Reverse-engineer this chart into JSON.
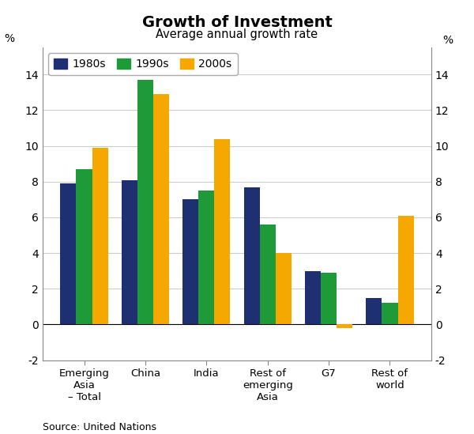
{
  "title": "Growth of Investment",
  "subtitle": "Average annual growth rate",
  "source": "Source: United Nations",
  "categories": [
    "Emerging\nAsia\n– Total",
    "China",
    "India",
    "Rest of\nemerging\nAsia",
    "G7",
    "Rest of\nworld"
  ],
  "series": {
    "1980s": [
      7.9,
      8.1,
      7.0,
      7.7,
      3.0,
      1.5
    ],
    "1990s": [
      8.7,
      13.7,
      7.5,
      5.6,
      2.9,
      1.2
    ],
    "2000s": [
      9.9,
      12.9,
      10.4,
      4.0,
      -0.2,
      6.1
    ]
  },
  "colors": {
    "1980s": "#1f3072",
    "1990s": "#1e9b38",
    "2000s": "#f5a800"
  },
  "ylim": [
    -2,
    15.5
  ],
  "yticks": [
    -2,
    0,
    2,
    4,
    6,
    8,
    10,
    12,
    14
  ],
  "bar_width": 0.26,
  "figsize": [
    6.0,
    5.49
  ],
  "dpi": 100,
  "bg_color": "#ffffff",
  "plot_bg_color": "#ffffff",
  "grid_color": "#cccccc"
}
